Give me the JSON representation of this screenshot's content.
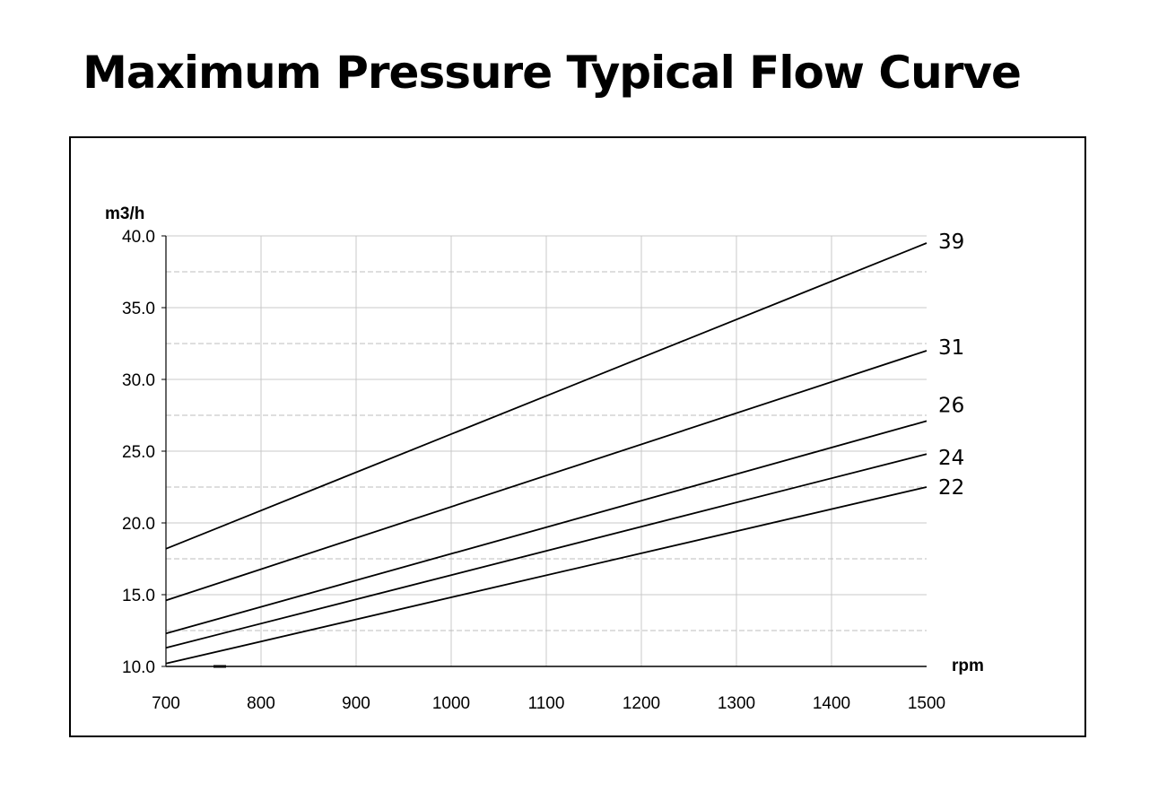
{
  "title": "Maximum Pressure Typical Flow Curve",
  "chart_data": {
    "type": "line",
    "title": "Maximum Pressure Typical Flow Curve",
    "xlabel": "rpm",
    "ylabel": "m3/h",
    "xlim": [
      700,
      1500
    ],
    "ylim": [
      10,
      40
    ],
    "x_ticks": [
      "700",
      "800",
      "900",
      "1000",
      "1100",
      "1200",
      "1300",
      "1400",
      "1500"
    ],
    "y_ticks": [
      "10.0",
      "15.0",
      "20.0",
      "25.0",
      "30.0",
      "35.0",
      "40.0"
    ],
    "grid": true,
    "x": [
      700,
      1500
    ],
    "series": [
      {
        "name": "39",
        "values": [
          18.2,
          39.5
        ]
      },
      {
        "name": "31",
        "values": [
          14.6,
          32.0
        ]
      },
      {
        "name": "26",
        "values": [
          12.3,
          27.1
        ]
      },
      {
        "name": "24",
        "values": [
          11.3,
          24.8
        ]
      },
      {
        "name": "22",
        "values": [
          10.2,
          22.5
        ]
      }
    ]
  }
}
